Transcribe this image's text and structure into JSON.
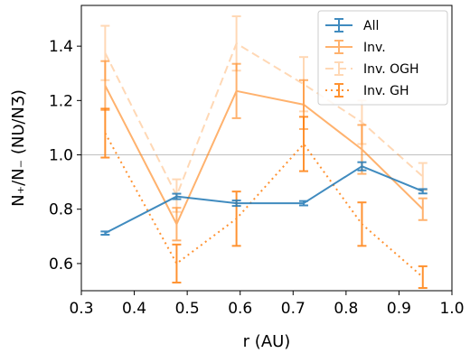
{
  "chart_data": {
    "type": "line",
    "xlabel": "r (AU)",
    "ylabel": "N₊/N₋ (NƲ/NƷ)",
    "xlim": [
      0.3,
      1.0
    ],
    "ylim": [
      0.5,
      1.55
    ],
    "xticks": [
      "0.3",
      "0.4",
      "0.5",
      "0.6",
      "0.7",
      "0.8",
      "0.9",
      "1.0"
    ],
    "yticks": [
      "0.6",
      "0.8",
      "1.0",
      "1.2",
      "1.4"
    ],
    "reference_line": 1.0,
    "legend_position": "top-right",
    "grid": false,
    "x": [
      0.345,
      0.48,
      0.593,
      0.72,
      0.83,
      0.945
    ],
    "series": [
      {
        "name": "All",
        "style": "solid",
        "color": "#1f77b4",
        "values": [
          0.712,
          0.847,
          0.822,
          0.822,
          0.958,
          0.866
        ],
        "err": [
          0.006,
          0.01,
          0.01,
          0.008,
          0.015,
          0.008
        ]
      },
      {
        "name": "Inv.",
        "style": "solid",
        "color": "#ff7f0e",
        "values": [
          1.255,
          0.745,
          1.235,
          1.185,
          1.02,
          0.8
        ],
        "err": [
          0.09,
          0.06,
          0.1,
          0.09,
          0.09,
          0.04
        ]
      },
      {
        "name": "Inv. OGH",
        "style": "dashed",
        "color": "#ff7f0e",
        "values": [
          1.375,
          0.85,
          1.41,
          1.26,
          1.12,
          0.92
        ],
        "err": [
          0.1,
          0.06,
          0.1,
          0.1,
          0.08,
          0.05
        ]
      },
      {
        "name": "Inv. GH",
        "style": "dotted",
        "color": "#ff7f0e",
        "values": [
          1.08,
          0.6,
          0.765,
          1.04,
          0.745,
          0.55
        ],
        "err": [
          0.09,
          0.07,
          0.1,
          0.1,
          0.08,
          0.04
        ]
      }
    ]
  }
}
